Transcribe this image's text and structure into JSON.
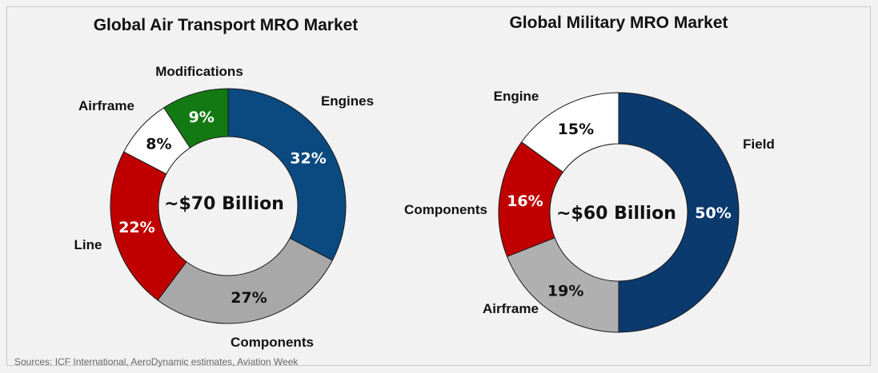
{
  "chart_data": [
    {
      "type": "pie",
      "title": "Global Air Transport MRO Market",
      "center_label": "~$70 Billion",
      "slices": [
        {
          "label": "Engines",
          "value": 32,
          "value_label": "32%",
          "color": "#0b4a80",
          "label_color": "#ffffff"
        },
        {
          "label": "Components",
          "value": 27,
          "value_label": "27%",
          "color": "#a8a8a8",
          "label_color": "#111111"
        },
        {
          "label": "Line",
          "value": 22,
          "value_label": "22%",
          "color": "#c00000",
          "label_color": "#ffffff"
        },
        {
          "label": "Airframe",
          "value": 8,
          "value_label": "8%",
          "color": "#ffffff",
          "label_color": "#111111"
        },
        {
          "label": "Modifications",
          "value": 9,
          "value_label": "9%",
          "color": "#137a13",
          "label_color": "#ffffff"
        }
      ]
    },
    {
      "type": "pie",
      "title": "Global Military MRO Market",
      "center_label": "~$60 Billion",
      "slices": [
        {
          "label": "Field",
          "value": 50,
          "value_label": "50%",
          "color": "#0b3a6e",
          "label_color": "#ffffff"
        },
        {
          "label": "Airframe",
          "value": 19,
          "value_label": "19%",
          "color": "#b0b0b0",
          "label_color": "#111111"
        },
        {
          "label": "Components",
          "value": 16,
          "value_label": "16%",
          "color": "#c00000",
          "label_color": "#ffffff"
        },
        {
          "label": "Engine",
          "value": 15,
          "value_label": "15%",
          "color": "#ffffff",
          "label_color": "#111111"
        }
      ]
    }
  ],
  "source": "Sources: ICF International, AeroDynamic estimates, Aviation Week"
}
